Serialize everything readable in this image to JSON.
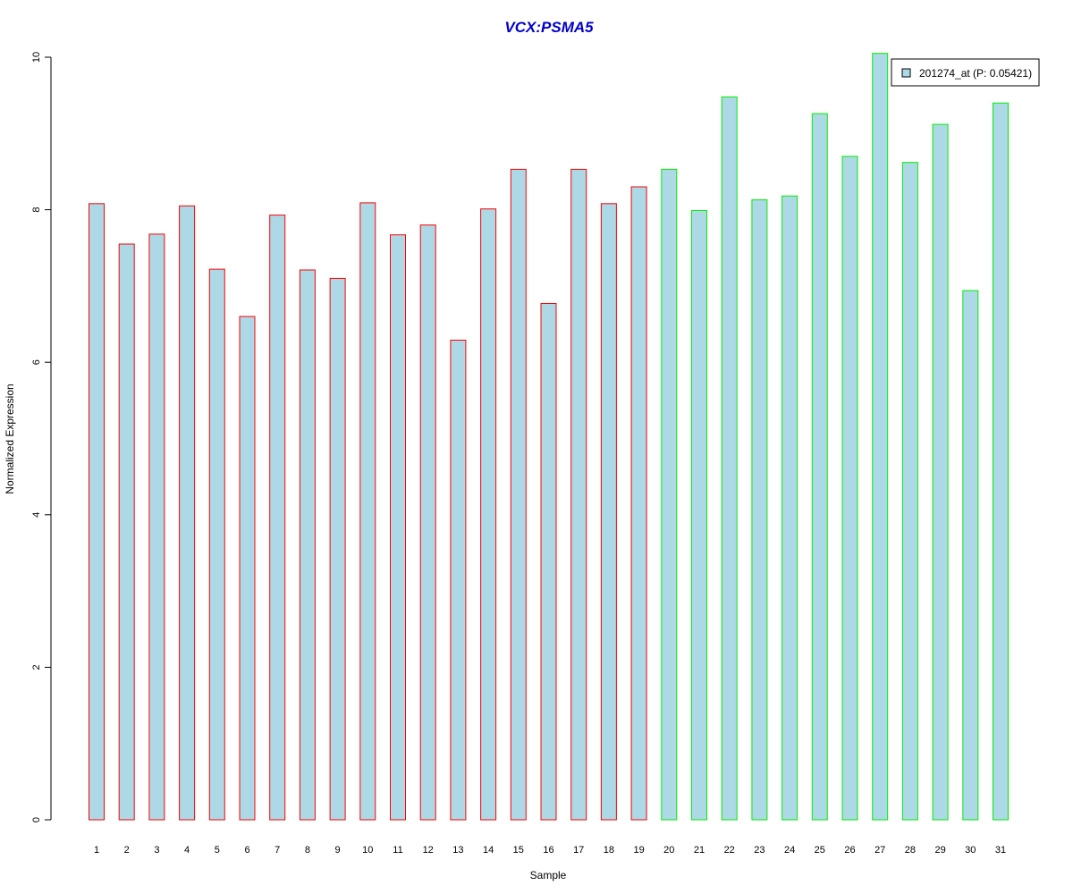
{
  "chart_data": {
    "type": "bar",
    "title": "VCX:PSMA5",
    "xlabel": "Sample",
    "ylabel": "Normalized Expression",
    "ylim": [
      0,
      10
    ],
    "yticks": [
      0,
      2,
      4,
      6,
      8,
      10
    ],
    "categories": [
      "1",
      "2",
      "3",
      "4",
      "5",
      "6",
      "7",
      "8",
      "9",
      "10",
      "11",
      "12",
      "13",
      "14",
      "15",
      "16",
      "17",
      "18",
      "19",
      "20",
      "21",
      "22",
      "23",
      "24",
      "25",
      "26",
      "27",
      "28",
      "29",
      "30",
      "31"
    ],
    "series": [
      {
        "name": "201274_at (P: 0.05421)",
        "values": [
          8.08,
          7.55,
          7.68,
          8.05,
          7.22,
          6.6,
          7.93,
          7.21,
          7.1,
          8.09,
          7.67,
          7.8,
          6.29,
          8.01,
          8.53,
          6.77,
          8.53,
          8.08,
          8.3,
          8.53,
          7.99,
          9.48,
          8.13,
          8.18,
          9.26,
          8.7,
          10.05,
          8.62,
          9.12,
          6.94,
          9.4
        ]
      }
    ],
    "grid": false,
    "legend": "top-right",
    "colors": {
      "bar_fill": "#add8e6",
      "group1_border": "#ff0000",
      "group2_border": "#00ee00",
      "title": "#0000cd"
    },
    "group1_count": 19
  }
}
